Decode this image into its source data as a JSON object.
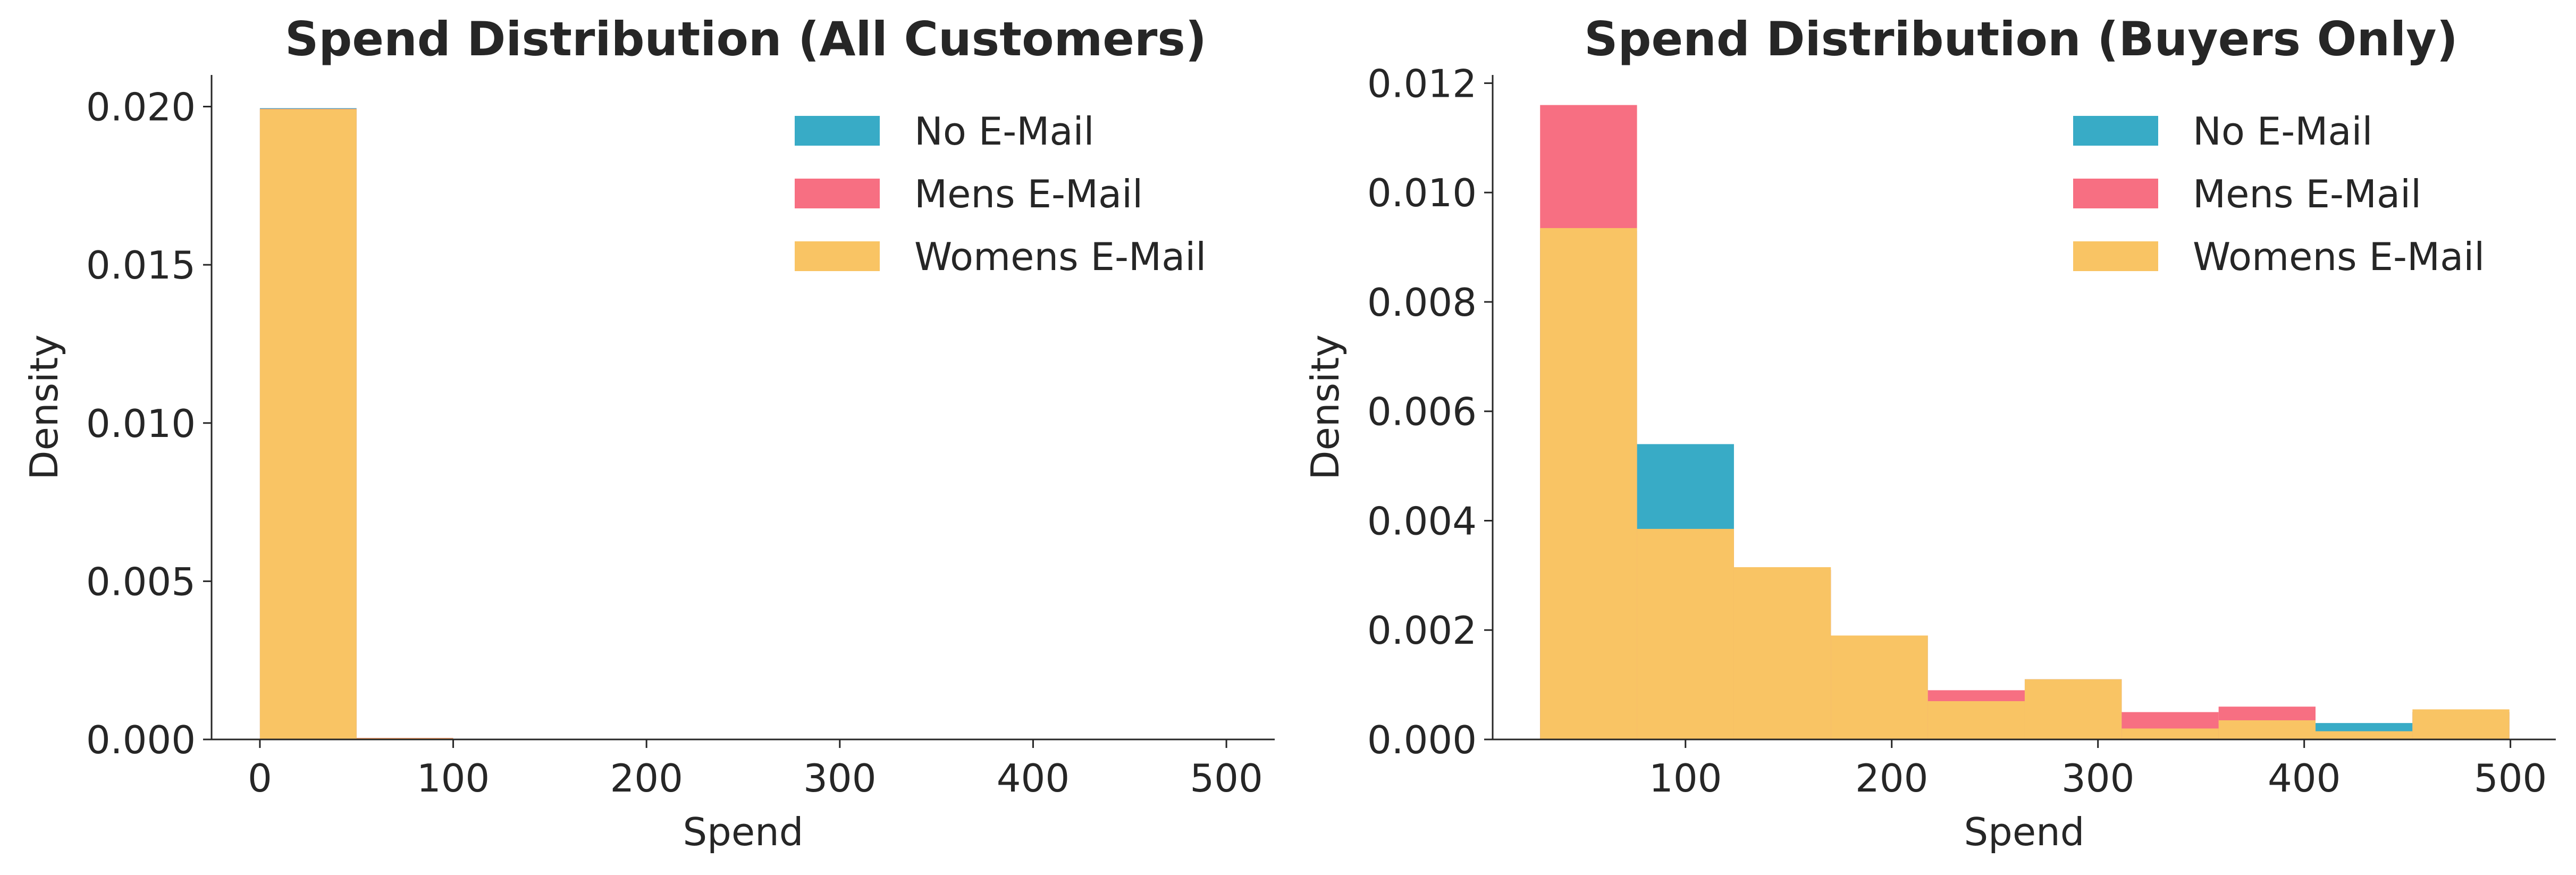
{
  "chart_data": [
    {
      "type": "bar",
      "title": "Spend Distribution (All Customers)",
      "xlabel": "Spend",
      "ylabel": "Density",
      "xlim": [
        -25,
        525
      ],
      "ylim": [
        0,
        0.021
      ],
      "xticks": [
        0,
        100,
        200,
        300,
        400,
        500
      ],
      "xtick_labels": [
        "0",
        "100",
        "200",
        "300",
        "400",
        "500"
      ],
      "yticks": [
        0,
        0.005,
        0.01,
        0.015,
        0.02
      ],
      "ytick_labels": [
        "0.000",
        "0.005",
        "0.010",
        "0.015",
        "0.020"
      ],
      "legend_position": "top-right",
      "bin_edges": [
        0,
        50,
        100,
        150,
        200,
        250,
        300,
        350,
        400,
        450,
        500
      ],
      "series": [
        {
          "name": "No E-Mail",
          "color": "#38abc6",
          "values": [
            0.01995,
            4e-05,
            1e-05,
            0,
            0,
            0,
            0,
            0,
            0,
            0
          ]
        },
        {
          "name": "Mens E-Mail",
          "color": "#f76f82",
          "values": [
            0.01993,
            5e-05,
            1e-05,
            0,
            0,
            0,
            0,
            0,
            0,
            0
          ]
        },
        {
          "name": "Womens E-Mail",
          "color": "#f9c464",
          "values": [
            0.01992,
            4e-05,
            1e-05,
            0,
            0,
            0,
            0,
            0,
            0,
            0
          ]
        }
      ]
    },
    {
      "type": "bar",
      "title": "Spend Distribution (Buyers Only)",
      "xlabel": "Spend",
      "ylabel": "Density",
      "xlim": [
        6.5,
        522
      ],
      "ylim": [
        0,
        0.01215
      ],
      "xticks": [
        100,
        200,
        300,
        400,
        500
      ],
      "xtick_labels": [
        "100",
        "200",
        "300",
        "400",
        "500"
      ],
      "yticks": [
        0,
        0.002,
        0.004,
        0.006,
        0.008,
        0.01,
        0.012
      ],
      "ytick_labels": [
        "0.000",
        "0.002",
        "0.004",
        "0.006",
        "0.008",
        "0.010",
        "0.012"
      ],
      "legend_position": "top-right",
      "bin_edges": [
        29.5,
        76.5,
        123.5,
        170.5,
        217.5,
        264.5,
        311.5,
        358.5,
        405.5,
        452.5,
        499.5
      ],
      "series": [
        {
          "name": "No E-Mail",
          "color": "#38abc6",
          "values": [
            0.0093,
            0.0054,
            0.0031,
            0.0019,
            0.0007,
            0.0011,
            0.0002,
            0.0003,
            0.0003,
            0.0005
          ]
        },
        {
          "name": "Mens E-Mail",
          "color": "#f76f82",
          "values": [
            0.0116,
            0.0038,
            0.0031,
            0.0019,
            0.0009,
            0.0011,
            0.0005,
            0.0006,
            0.0001,
            0.0005
          ]
        },
        {
          "name": "Womens E-Mail",
          "color": "#f9c464",
          "values": [
            0.00935,
            0.00385,
            0.00315,
            0.0019,
            0.0007,
            0.0011,
            0.0002,
            0.00035,
            0.00015,
            0.00055
          ]
        }
      ]
    }
  ]
}
